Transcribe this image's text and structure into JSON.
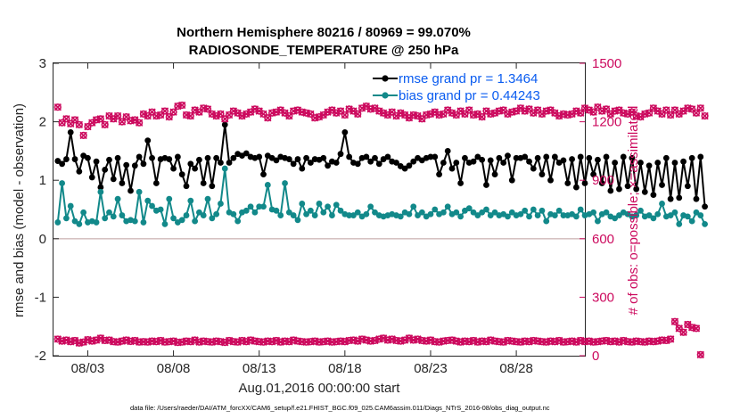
{
  "title_line1": "Northern Hemisphere 80216 / 80969 = 99.070%",
  "title_line2": "RADIOSONDE_TEMPERATURE @ 250 hPa",
  "footnote": "data file: /Users/raeder/DAI/ATM_forcXX/CAM6_setup/f.e21.FHIST_BGC.f09_025.CAM6assim.011/Diags_NTrS_2016-08/obs_diag_output.nc",
  "chart_data": {
    "type": "line",
    "xlabel": "Aug.01,2016 00:00:00 start",
    "ylabel_left": "rmse and bias (model - observation)",
    "ylabel_right": "# of obs: o=possible; ×=assimilated",
    "x_ticks": [
      "08/03",
      "08/08",
      "08/13",
      "08/18",
      "08/23",
      "08/28"
    ],
    "x_tick_days": [
      3,
      8,
      13,
      18,
      23,
      28
    ],
    "xlim": [
      1.0,
      32.0
    ],
    "y_left_ticks": [
      "-2",
      "-1",
      "0",
      "1",
      "2",
      "3"
    ],
    "ylim_left": [
      -2,
      3
    ],
    "y_right_ticks": [
      "0",
      "300",
      "600",
      "900",
      "1200",
      "1500"
    ],
    "ylim_right": [
      0,
      1500
    ],
    "x_start_day": 1.25,
    "x_step_days": 0.25,
    "legend": [
      "rmse grand pr = 1.3464",
      "bias grand pr = 0.44243"
    ],
    "legend_position": "top-right",
    "colors": {
      "rmse": "#000000",
      "bias": "#12898a",
      "obs": "#cc0a5e",
      "zero_line": "#cfb8b8"
    },
    "series": [
      {
        "name": "rmse grand pr = 1.3464",
        "values": [
          1.33,
          1.28,
          1.36,
          1.82,
          1.36,
          1.15,
          1.42,
          1.38,
          1.05,
          1.32,
          0.88,
          1.18,
          1.35,
          1.02,
          1.38,
          0.95,
          1.26,
          0.82,
          1.25,
          1.4,
          1.28,
          1.68,
          1.38,
          0.95,
          1.36,
          1.38,
          1.36,
          1.2,
          1.4,
          1.1,
          0.9,
          1.28,
          1.2,
          1.35,
          0.95,
          1.38,
          0.9,
          1.38,
          1.3,
          1.95,
          1.3,
          1.38,
          1.45,
          1.42,
          1.46,
          1.4,
          1.38,
          1.4,
          1.1,
          1.42,
          1.38,
          1.34,
          1.4,
          1.38,
          1.36,
          1.28,
          1.36,
          1.2,
          1.38,
          1.3,
          1.36,
          1.35,
          1.38,
          1.25,
          1.32,
          1.3,
          1.45,
          1.82,
          1.4,
          1.3,
          1.28,
          1.38,
          1.4,
          1.32,
          1.38,
          1.28,
          1.36,
          1.4,
          1.32,
          1.3,
          1.24,
          1.2,
          1.25,
          1.32,
          1.38,
          1.34,
          1.38,
          1.4,
          1.4,
          1.1,
          1.3,
          1.5,
          1.2,
          1.3,
          0.95,
          1.38,
          1.3,
          1.32,
          1.4,
          1.35,
          0.92,
          1.34,
          1.1,
          1.38,
          1.3,
          1.42,
          1.0,
          1.38,
          1.38,
          1.4,
          1.32,
          1.2,
          1.38,
          1.1,
          1.4,
          1.0,
          1.4,
          1.3,
          1.34,
          0.95,
          1.36,
          0.88,
          1.4,
          0.95,
          1.38,
          1.1,
          1.35,
          0.95,
          1.4,
          0.82,
          1.3,
          0.85,
          1.4,
          0.9,
          1.38,
          0.85,
          1.3,
          0.8,
          1.25,
          0.75,
          1.3,
          0.92,
          1.38,
          0.68,
          1.3,
          0.7,
          1.32,
          0.9,
          1.38,
          0.68,
          1.4,
          0.55
        ]
      },
      {
        "name": "bias grand pr = 0.44243",
        "values": [
          0.28,
          0.95,
          0.35,
          0.56,
          0.3,
          0.25,
          0.45,
          0.28,
          0.3,
          0.28,
          0.8,
          0.35,
          0.45,
          0.38,
          0.68,
          0.4,
          0.3,
          0.32,
          0.3,
          0.8,
          0.28,
          0.65,
          0.56,
          0.48,
          0.5,
          0.25,
          0.68,
          0.35,
          0.28,
          0.32,
          0.4,
          0.65,
          0.3,
          0.45,
          0.4,
          0.68,
          0.35,
          0.42,
          0.6,
          1.2,
          0.45,
          0.42,
          0.3,
          0.45,
          0.48,
          0.55,
          0.45,
          0.55,
          0.55,
          0.92,
          0.5,
          0.48,
          0.4,
          0.95,
          0.45,
          0.4,
          0.32,
          0.6,
          0.42,
          0.48,
          0.4,
          0.6,
          0.45,
          0.55,
          0.4,
          0.58,
          0.48,
          0.42,
          0.4,
          0.4,
          0.45,
          0.38,
          0.42,
          0.55,
          0.45,
          0.4,
          0.38,
          0.4,
          0.42,
          0.4,
          0.38,
          0.45,
          0.42,
          0.55,
          0.4,
          0.45,
          0.38,
          0.42,
          0.5,
          0.42,
          0.45,
          0.55,
          0.42,
          0.45,
          0.38,
          0.48,
          0.52,
          0.45,
          0.4,
          0.45,
          0.5,
          0.4,
          0.45,
          0.4,
          0.42,
          0.38,
          0.45,
          0.4,
          0.42,
          0.48,
          0.38,
          0.5,
          0.4,
          0.48,
          0.3,
          0.42,
          0.4,
          0.48,
          0.4,
          0.4,
          0.42,
          0.38,
          0.5,
          0.4,
          0.42,
          0.45,
          0.3,
          0.42,
          0.45,
          0.38,
          0.35,
          0.4,
          0.45,
          0.42,
          0.38,
          0.4,
          0.48,
          0.38,
          0.4,
          0.35,
          0.42,
          0.6,
          0.38,
          0.4,
          0.45,
          0.25,
          0.4,
          0.38,
          0.3,
          0.45,
          0.4,
          0.25
        ]
      },
      {
        "name": "possible",
        "values": [
          1275,
          1195,
          1215,
          1190,
          1210,
          1185,
          1130,
          1175,
          1195,
          1210,
          1215,
          1185,
          1230,
          1215,
          1230,
          1200,
          1225,
          1205,
          1210,
          1195,
          1240,
          1230,
          1250,
          1230,
          1235,
          1255,
          1225,
          1250,
          1280,
          1285,
          1235,
          1230,
          1260,
          1250,
          1270,
          1265,
          1240,
          1230,
          1240,
          1215,
          1235,
          1255,
          1245,
          1230,
          1240,
          1250,
          1265,
          1255,
          1240,
          1220,
          1245,
          1250,
          1260,
          1245,
          1230,
          1255,
          1260,
          1250,
          1245,
          1240,
          1220,
          1225,
          1235,
          1250,
          1260,
          1245,
          1255,
          1235,
          1265,
          1255,
          1240,
          1270,
          1280,
          1265,
          1270,
          1255,
          1245,
          1235,
          1250,
          1230,
          1245,
          1235,
          1220,
          1235,
          1230,
          1215,
          1235,
          1240,
          1250,
          1235,
          1240,
          1260,
          1245,
          1235,
          1255,
          1240,
          1260,
          1235,
          1240,
          1225,
          1255,
          1240,
          1245,
          1255,
          1260,
          1240,
          1250,
          1255,
          1270,
          1255,
          1265,
          1245,
          1260,
          1240,
          1255,
          1260,
          1245,
          1230,
          1240,
          1235,
          1240,
          1255,
          1245,
          1270,
          1260,
          1250,
          1275,
          1255,
          1265,
          1240,
          1255,
          1260,
          1245,
          1240,
          1250,
          1230,
          1225,
          1240,
          1245,
          1270,
          1255,
          1240,
          1260,
          1235,
          1260,
          1240,
          1255,
          1270,
          1265,
          1245,
          1270,
          1230
        ]
      },
      {
        "name": "assimilated",
        "values": [
          85,
          75,
          80,
          72,
          78,
          65,
          70,
          82,
          75,
          80,
          90,
          78,
          80,
          72,
          70,
          75,
          80,
          73,
          78,
          70,
          72,
          70,
          75,
          72,
          78,
          70,
          72,
          75,
          68,
          70,
          75,
          72,
          80,
          70,
          75,
          72,
          70,
          75,
          72,
          68,
          78,
          72,
          70,
          78,
          72,
          80,
          75,
          72,
          70,
          75,
          72,
          78,
          70,
          75,
          72,
          80,
          75,
          72,
          70,
          72,
          75,
          70,
          72,
          75,
          70,
          72,
          75,
          72,
          78,
          80,
          75,
          85,
          80,
          75,
          78,
          85,
          90,
          80,
          85,
          78,
          75,
          80,
          90,
          80,
          85,
          78,
          75,
          80,
          72,
          70,
          75,
          78,
          80,
          75,
          70,
          75,
          72,
          78,
          70,
          75,
          72,
          80,
          75,
          72,
          70,
          78,
          75,
          72,
          70,
          75,
          72,
          78,
          75,
          72,
          70,
          75,
          72,
          78,
          70,
          72,
          75,
          70,
          78,
          72,
          75,
          70,
          72,
          75,
          78,
          72,
          75,
          70,
          78,
          72,
          70,
          75,
          72,
          70,
          75,
          72,
          75,
          80,
          78,
          85,
          175,
          140,
          120,
          160,
          145,
          140,
          5
        ]
      }
    ]
  }
}
